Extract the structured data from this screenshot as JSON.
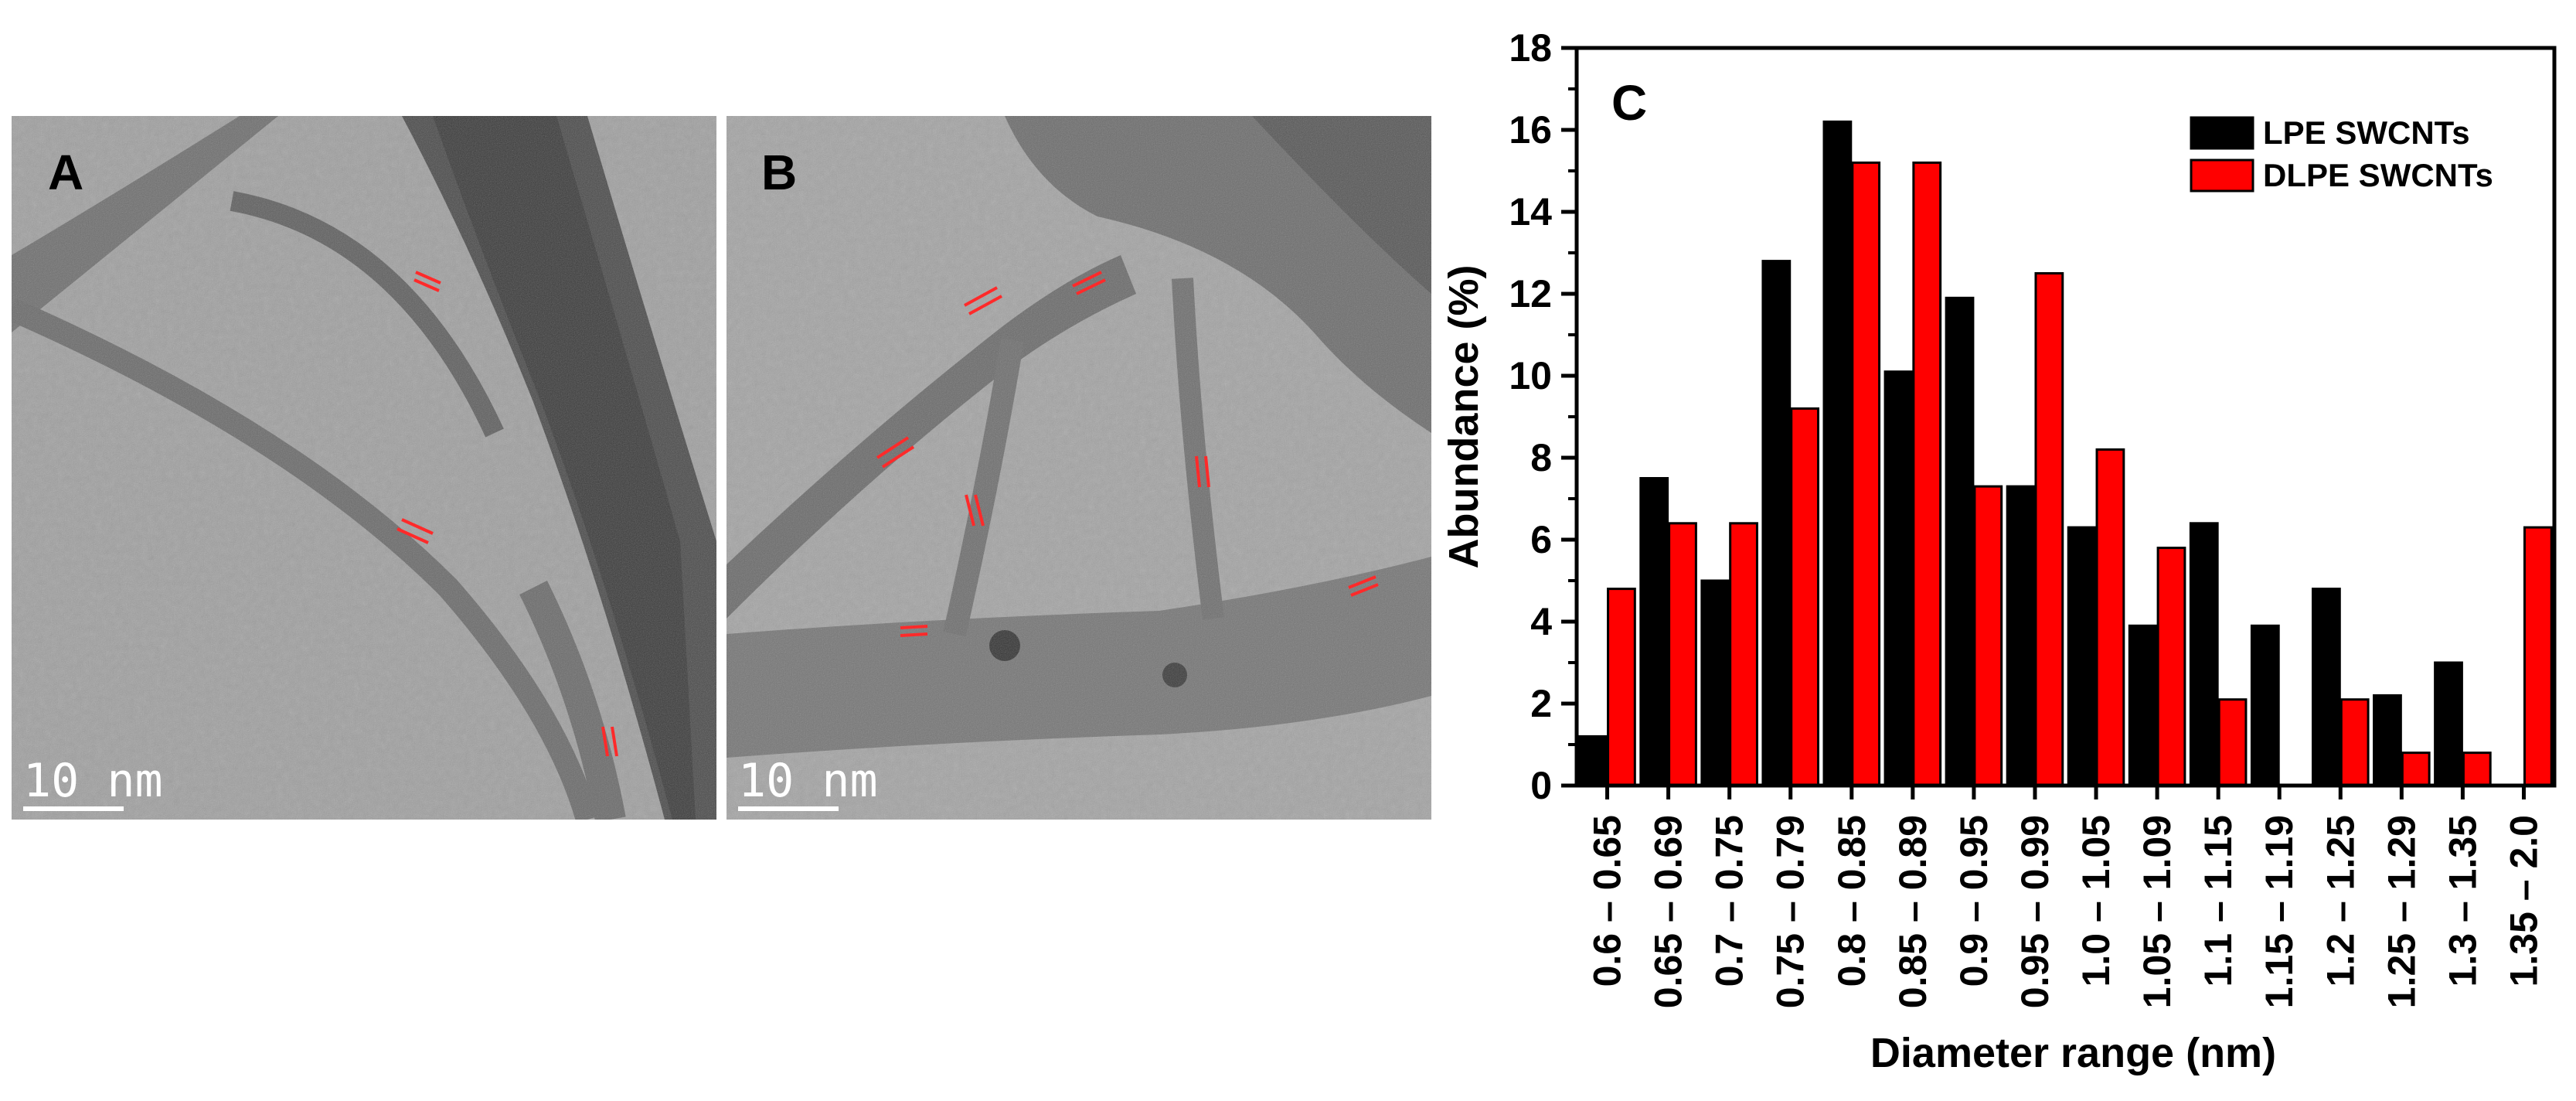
{
  "panels": {
    "a": {
      "letter": "A",
      "scale_bar": "10 nm"
    },
    "b": {
      "letter": "B",
      "scale_bar": "10 nm"
    },
    "c": {
      "letter": "C"
    }
  },
  "colors": {
    "lpe": "#000000",
    "dlpe": "#ff0000",
    "tem_bg": "#9c9c9c"
  },
  "chart_data": {
    "type": "bar",
    "title": "",
    "xlabel": "Diameter range (nm)",
    "ylabel": "Abundance (%)",
    "ylim": [
      0,
      18
    ],
    "yticks": [
      0,
      2,
      4,
      6,
      8,
      10,
      12,
      14,
      16,
      18
    ],
    "legend_position": "top-right",
    "categories": [
      "0.6 – 0.65",
      "0.65 – 0.69",
      "0.7 – 0.75",
      "0.75 – 0.79",
      "0.8 – 0.85",
      "0.85 – 0.89",
      "0.9 – 0.95",
      "0.95 – 0.99",
      "1.0 – 1.05",
      "1.05 – 1.09",
      "1.1 – 1.15",
      "1.15 – 1.19",
      "1.2 – 1.25",
      "1.25 – 1.29",
      "1.3 – 1.35",
      "1.35 – 2.0"
    ],
    "series": [
      {
        "name": "LPE SWCNTs",
        "color": "#000000",
        "values": [
          1.2,
          7.5,
          5.0,
          12.8,
          16.2,
          10.1,
          11.9,
          7.3,
          6.3,
          3.9,
          6.4,
          3.9,
          4.8,
          2.2,
          3.0,
          0
        ]
      },
      {
        "name": "DLPE SWCNTs",
        "color": "#ff0000",
        "values": [
          4.8,
          6.4,
          6.4,
          9.2,
          15.2,
          15.2,
          7.3,
          12.5,
          8.2,
          5.8,
          2.1,
          0,
          2.1,
          0.8,
          0.8,
          6.3
        ]
      }
    ]
  }
}
